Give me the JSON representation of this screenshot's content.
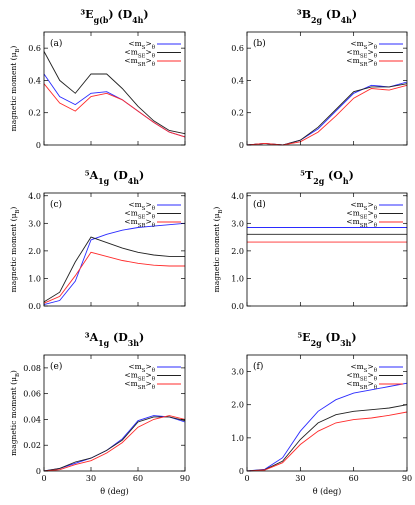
{
  "colors": {
    "mS": "#2b2bff",
    "mSE": "#222222",
    "mSR": "#ff2b2b"
  },
  "chart_data": [
    {
      "panel": "(a)",
      "title": "³E_g(b) (D_4h)",
      "type": "line",
      "xlabel": "",
      "ylabel": "magnetic moment (μ_B)",
      "xlim": [
        0,
        90
      ],
      "ylim": [
        0,
        0.7
      ],
      "xticks": [
        0,
        30,
        60,
        90
      ],
      "yticks": [
        0,
        0.2,
        0.4,
        0.6
      ],
      "yticklabels": [
        "0",
        "0.2",
        "0.4",
        "0.6"
      ],
      "show_xticklabels": false,
      "legend": [
        "<m_S>_θ",
        "<m_SE>_θ",
        "<m_SR>_θ"
      ],
      "series": [
        {
          "name": "<m_S>_θ",
          "x": [
            0,
            10,
            20,
            30,
            40,
            50,
            60,
            70,
            80,
            90
          ],
          "y": [
            0.44,
            0.3,
            0.25,
            0.32,
            0.33,
            0.28,
            0.21,
            0.14,
            0.08,
            0.05
          ]
        },
        {
          "name": "<m_SE>_θ",
          "x": [
            0,
            10,
            20,
            30,
            40,
            50,
            60,
            70,
            80,
            90
          ],
          "y": [
            0.58,
            0.4,
            0.32,
            0.44,
            0.44,
            0.35,
            0.24,
            0.15,
            0.09,
            0.07
          ]
        },
        {
          "name": "<m_SR>_θ",
          "x": [
            0,
            10,
            20,
            30,
            40,
            50,
            60,
            70,
            80,
            90
          ],
          "y": [
            0.38,
            0.26,
            0.21,
            0.3,
            0.32,
            0.28,
            0.21,
            0.14,
            0.08,
            0.05
          ]
        }
      ]
    },
    {
      "panel": "(b)",
      "title": "³B_2g (D_4h)",
      "type": "line",
      "xlabel": "",
      "ylabel": "",
      "xlim": [
        0,
        90
      ],
      "ylim": [
        0,
        0.7
      ],
      "xticks": [
        0,
        30,
        60,
        90
      ],
      "yticks": [
        0,
        0.2,
        0.4,
        0.6
      ],
      "yticklabels": [
        "0",
        "0.2",
        "0.4",
        "0.6"
      ],
      "show_xticklabels": false,
      "legend": [
        "<m_S>_θ",
        "<m_SE>_θ",
        "<m_SR>_θ"
      ],
      "series": [
        {
          "name": "<m_S>_θ",
          "x": [
            0,
            10,
            20,
            30,
            40,
            50,
            60,
            70,
            80,
            90
          ],
          "y": [
            0.0,
            0.01,
            0.0,
            0.03,
            0.1,
            0.21,
            0.32,
            0.37,
            0.36,
            0.39
          ]
        },
        {
          "name": "<m_SE>_θ",
          "x": [
            0,
            10,
            20,
            30,
            40,
            50,
            60,
            70,
            80,
            90
          ],
          "y": [
            0.0,
            0.01,
            0.0,
            0.03,
            0.11,
            0.22,
            0.33,
            0.36,
            0.36,
            0.38
          ]
        },
        {
          "name": "<m_SR>_θ",
          "x": [
            0,
            10,
            20,
            30,
            40,
            50,
            60,
            70,
            80,
            90
          ],
          "y": [
            0.0,
            0.01,
            0.0,
            0.02,
            0.08,
            0.18,
            0.29,
            0.35,
            0.34,
            0.37
          ]
        }
      ]
    },
    {
      "panel": "(c)",
      "title": "⁵A_1g (D_4h)",
      "type": "line",
      "xlabel": "",
      "ylabel": "magnetic moment (μ_B)",
      "xlim": [
        0,
        90
      ],
      "ylim": [
        0,
        4.1
      ],
      "xticks": [
        0,
        30,
        60,
        90
      ],
      "yticks": [
        0,
        1,
        2,
        3,
        4
      ],
      "yticklabels": [
        "0.0",
        "1.0",
        "2.0",
        "3.0",
        "4.0"
      ],
      "show_xticklabels": false,
      "legend": [
        "<m_S>_θ",
        "<m_SE>_θ",
        "<m_SR>_θ"
      ],
      "series": [
        {
          "name": "<m_S>_θ",
          "x": [
            0,
            10,
            20,
            30,
            40,
            50,
            60,
            70,
            80,
            90
          ],
          "y": [
            0.05,
            0.2,
            0.9,
            2.4,
            2.6,
            2.75,
            2.85,
            2.9,
            2.95,
            3.0
          ]
        },
        {
          "name": "<m_SE>_θ",
          "x": [
            0,
            10,
            20,
            30,
            40,
            50,
            60,
            70,
            80,
            90
          ],
          "y": [
            0.15,
            0.5,
            1.6,
            2.5,
            2.3,
            2.1,
            1.95,
            1.85,
            1.8,
            1.8
          ]
        },
        {
          "name": "<m_SR>_θ",
          "x": [
            0,
            10,
            20,
            30,
            40,
            50,
            60,
            70,
            80,
            90
          ],
          "y": [
            0.1,
            0.35,
            1.1,
            1.95,
            1.8,
            1.65,
            1.55,
            1.48,
            1.45,
            1.45
          ]
        }
      ]
    },
    {
      "panel": "(d)",
      "title": "⁵T_2g (O_h)",
      "type": "line",
      "xlabel": "",
      "ylabel": "magnetic moment (μ_B)",
      "xlim": [
        0,
        90
      ],
      "ylim": [
        0,
        4.1
      ],
      "xticks": [
        0,
        30,
        60,
        90
      ],
      "yticks": [
        0,
        1,
        2,
        3,
        4
      ],
      "yticklabels": [
        "0.0",
        "1.0",
        "2.0",
        "3.0",
        "4.0"
      ],
      "show_xticklabels": false,
      "legend": [
        "<m_S>_θ",
        "<m_SE>_θ",
        "<m_SR>_θ"
      ],
      "series": [
        {
          "name": "<m_S>_θ",
          "x": [
            0,
            90
          ],
          "y": [
            2.85,
            2.85
          ]
        },
        {
          "name": "<m_SE>_θ",
          "x": [
            0,
            90
          ],
          "y": [
            2.6,
            2.6
          ]
        },
        {
          "name": "<m_SR>_θ",
          "x": [
            0,
            90
          ],
          "y": [
            2.32,
            2.32
          ]
        }
      ]
    },
    {
      "panel": "(e)",
      "title": "³A_1g (D_3h)",
      "type": "line",
      "xlabel": "θ (deg)",
      "ylabel": "magnetic moment (μ_B)",
      "xlim": [
        0,
        90
      ],
      "ylim": [
        0,
        0.09
      ],
      "xticks": [
        0,
        30,
        60,
        90
      ],
      "yticks": [
        0,
        0.02,
        0.04,
        0.06,
        0.08
      ],
      "yticklabels": [
        "0",
        "0.02",
        "0.04",
        "0.06",
        "0.08"
      ],
      "show_xticklabels": true,
      "legend": [
        "<m_S>_θ",
        "<m_SE>_θ",
        "<m_SR>_θ"
      ],
      "series": [
        {
          "name": "<m_S>_θ",
          "x": [
            0,
            10,
            20,
            30,
            40,
            50,
            60,
            70,
            80,
            90
          ],
          "y": [
            0.0,
            0.002,
            0.006,
            0.01,
            0.016,
            0.025,
            0.039,
            0.043,
            0.042,
            0.038
          ]
        },
        {
          "name": "<m_SE>_θ",
          "x": [
            0,
            10,
            20,
            30,
            40,
            50,
            60,
            70,
            80,
            90
          ],
          "y": [
            0.0,
            0.002,
            0.007,
            0.01,
            0.016,
            0.024,
            0.038,
            0.042,
            0.042,
            0.039
          ]
        },
        {
          "name": "<m_SR>_θ",
          "x": [
            0,
            10,
            20,
            30,
            40,
            50,
            60,
            70,
            80,
            90
          ],
          "y": [
            0.0,
            0.001,
            0.005,
            0.008,
            0.014,
            0.022,
            0.034,
            0.04,
            0.043,
            0.04
          ]
        }
      ]
    },
    {
      "panel": "(f)",
      "title": "⁵E_2g (D_3h)",
      "type": "line",
      "xlabel": "θ (deg)",
      "ylabel": "",
      "xlim": [
        0,
        90
      ],
      "ylim": [
        0,
        3.5
      ],
      "xticks": [
        0,
        30,
        60,
        90
      ],
      "yticks": [
        0,
        1,
        2,
        3
      ],
      "yticklabels": [
        "0",
        "1.0",
        "2.0",
        "3.0"
      ],
      "show_xticklabels": true,
      "legend": [
        "<m_S>_θ",
        "<m_SE>_θ",
        "<m_SR>_θ"
      ],
      "series": [
        {
          "name": "<m_S>_θ",
          "x": [
            0,
            10,
            20,
            30,
            40,
            50,
            60,
            70,
            80,
            90
          ],
          "y": [
            0.0,
            0.05,
            0.4,
            1.2,
            1.8,
            2.15,
            2.35,
            2.45,
            2.55,
            2.65
          ]
        },
        {
          "name": "<m_SE>_θ",
          "x": [
            0,
            10,
            20,
            30,
            40,
            50,
            60,
            70,
            80,
            90
          ],
          "y": [
            0.0,
            0.04,
            0.3,
            0.95,
            1.45,
            1.7,
            1.8,
            1.85,
            1.9,
            2.0
          ]
        },
        {
          "name": "<m_SR>_θ",
          "x": [
            0,
            10,
            20,
            30,
            40,
            50,
            60,
            70,
            80,
            90
          ],
          "y": [
            0.0,
            0.03,
            0.25,
            0.8,
            1.2,
            1.45,
            1.55,
            1.6,
            1.68,
            1.78
          ]
        }
      ]
    }
  ]
}
